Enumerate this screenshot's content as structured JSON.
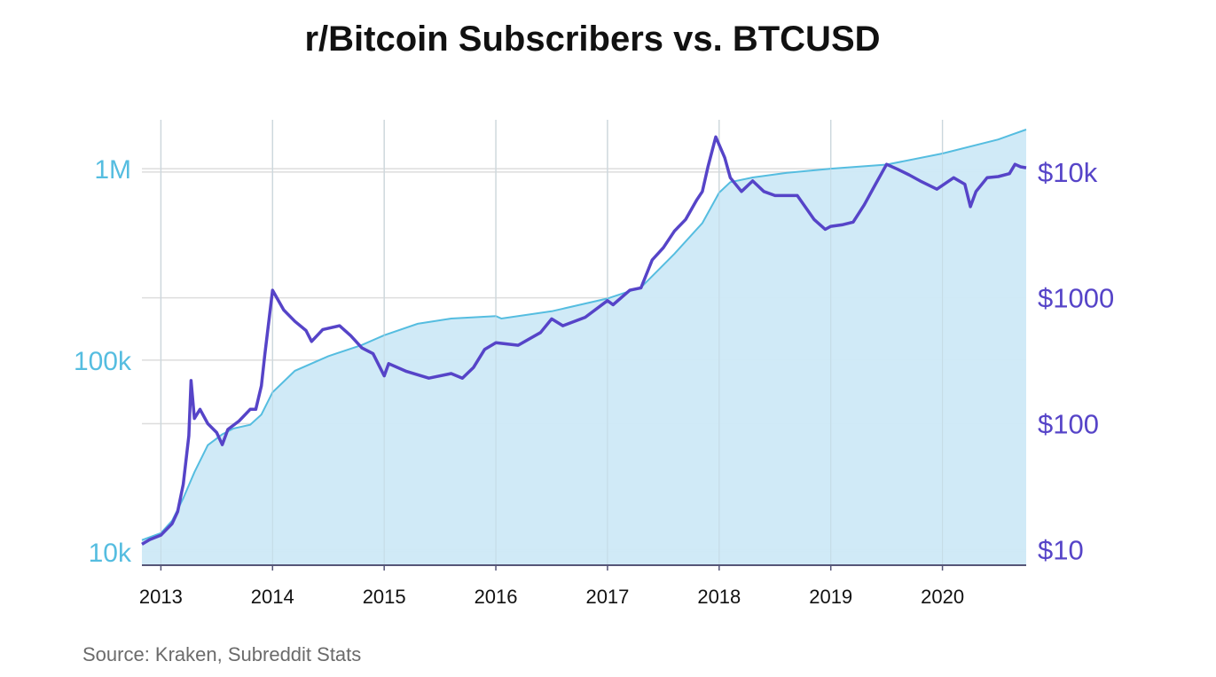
{
  "title": "r/Bitcoin Subscribers vs. BTCUSD",
  "source": "Source: Kraken, Subreddit Stats",
  "colors": {
    "subscribers_line": "#55bde0",
    "subscribers_fill": "#cde9f7",
    "price_line": "#5644c8",
    "grid": "#dddddd",
    "axis": "#555577",
    "left_tick_text": "#55bde0",
    "right_tick_text": "#5644c8"
  },
  "chart_data": {
    "type": "line",
    "title": "r/Bitcoin Subscribers vs. BTCUSD",
    "x_ticks": [
      "2013",
      "2014",
      "2015",
      "2016",
      "2017",
      "2018",
      "2019",
      "2020"
    ],
    "x_range": [
      2012.83,
      2020.75
    ],
    "left_axis": {
      "scale": "log",
      "range": [
        8500,
        1800000
      ],
      "ticks": [
        {
          "value": 10000,
          "label": "10k"
        },
        {
          "value": 100000,
          "label": "100k"
        },
        {
          "value": 1000000,
          "label": "1M"
        }
      ]
    },
    "right_axis": {
      "scale": "log",
      "range": [
        7.5,
        26000
      ],
      "ticks": [
        {
          "value": 10,
          "label": "$10"
        },
        {
          "value": 100,
          "label": "$100"
        },
        {
          "value": 1000,
          "label": "$1000"
        },
        {
          "value": 10000,
          "label": "$10k"
        }
      ]
    },
    "grid": true,
    "series": [
      {
        "axis": "left",
        "style": "area",
        "x": [
          2012.83,
          2013.0,
          2013.1,
          2013.2,
          2013.3,
          2013.42,
          2013.55,
          2013.65,
          2013.8,
          2013.9,
          2014.0,
          2014.2,
          2014.5,
          2014.8,
          2015.0,
          2015.3,
          2015.6,
          2016.0,
          2016.05,
          2016.5,
          2017.0,
          2017.3,
          2017.6,
          2017.85,
          2018.0,
          2018.1,
          2018.3,
          2018.6,
          2019.0,
          2019.5,
          2020.0,
          2020.5,
          2020.75
        ],
        "y": [
          11500,
          12500,
          14500,
          19000,
          26000,
          36000,
          41000,
          44000,
          46000,
          52000,
          68000,
          88000,
          105000,
          120000,
          135000,
          155000,
          165000,
          170000,
          165000,
          180000,
          210000,
          240000,
          360000,
          520000,
          750000,
          850000,
          900000,
          950000,
          1000000,
          1050000,
          1200000,
          1420000,
          1600000
        ]
      },
      {
        "axis": "right",
        "style": "line",
        "x": [
          2012.83,
          2012.9,
          2013.0,
          2013.1,
          2013.15,
          2013.2,
          2013.25,
          2013.27,
          2013.3,
          2013.35,
          2013.42,
          2013.5,
          2013.55,
          2013.6,
          2013.7,
          2013.8,
          2013.85,
          2013.9,
          2013.93,
          2014.0,
          2014.1,
          2014.2,
          2014.3,
          2014.35,
          2014.45,
          2014.6,
          2014.7,
          2014.8,
          2014.9,
          2015.0,
          2015.04,
          2015.2,
          2015.4,
          2015.6,
          2015.7,
          2015.8,
          2015.9,
          2016.0,
          2016.2,
          2016.4,
          2016.5,
          2016.6,
          2016.8,
          2017.0,
          2017.05,
          2017.2,
          2017.3,
          2017.4,
          2017.5,
          2017.6,
          2017.7,
          2017.8,
          2017.85,
          2017.9,
          2017.97,
          2018.05,
          2018.1,
          2018.2,
          2018.3,
          2018.4,
          2018.5,
          2018.6,
          2018.7,
          2018.85,
          2018.95,
          2019.0,
          2019.1,
          2019.2,
          2019.3,
          2019.4,
          2019.5,
          2019.6,
          2019.7,
          2019.8,
          2019.95,
          2020.1,
          2020.2,
          2020.25,
          2020.3,
          2020.4,
          2020.5,
          2020.6,
          2020.65,
          2020.7,
          2020.75
        ],
        "y": [
          11,
          12,
          13,
          16,
          20,
          33,
          80,
          220,
          110,
          130,
          100,
          85,
          68,
          90,
          105,
          130,
          130,
          200,
          350,
          1150,
          800,
          650,
          550,
          450,
          560,
          600,
          500,
          400,
          360,
          240,
          300,
          260,
          230,
          250,
          230,
          280,
          390,
          440,
          420,
          530,
          680,
          600,
          700,
          950,
          880,
          1150,
          1200,
          2000,
          2500,
          3400,
          4200,
          6000,
          7000,
          11000,
          19000,
          13000,
          9000,
          7000,
          8500,
          7000,
          6500,
          6500,
          6500,
          4200,
          3500,
          3700,
          3800,
          4000,
          5500,
          8000,
          11500,
          10500,
          9500,
          8500,
          7300,
          9000,
          8000,
          5300,
          7000,
          9000,
          9200,
          9700,
          11500,
          11000,
          10800
        ]
      }
    ]
  }
}
